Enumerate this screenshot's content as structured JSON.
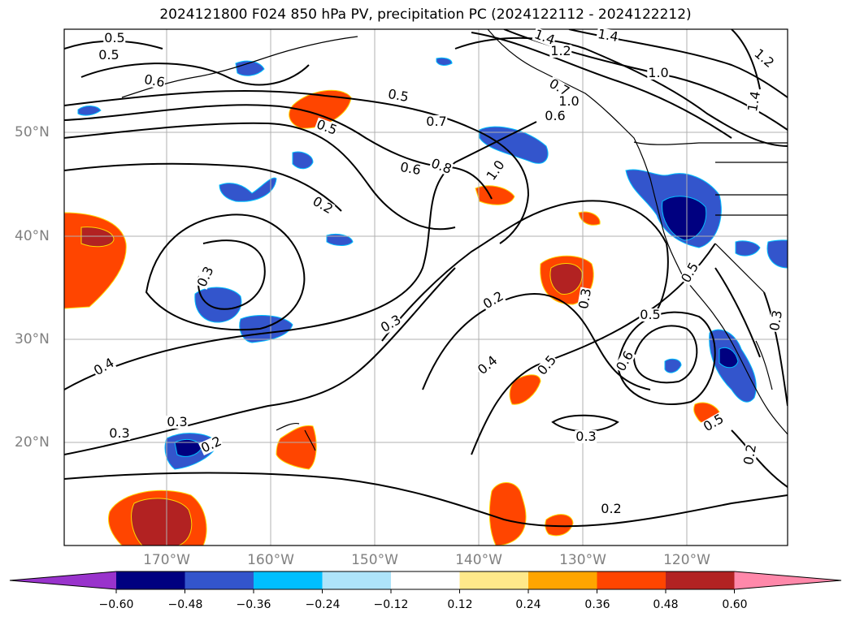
{
  "title": "2024121800 F024 850 hPa PV, precipitation PC (2024122112 - 2024122212)",
  "lon_labels": [
    "170°W",
    "160°W",
    "150°W",
    "140°W",
    "130°W",
    "120°W"
  ],
  "lat_labels": [
    "50°N",
    "40°N",
    "30°N",
    "20°N"
  ],
  "colorbar": {
    "ticks": [
      "−0.60",
      "−0.48",
      "−0.36",
      "−0.24",
      "−0.12",
      "0.12",
      "0.24",
      "0.36",
      "0.48",
      "0.60"
    ],
    "colors": [
      "#9933cc",
      "#000080",
      "#3355cc",
      "#00bfff",
      "#aee4fa",
      "#ffffff",
      "#ffe98a",
      "#ffa500",
      "#ff4500",
      "#b22222",
      "#ff88aa"
    ]
  },
  "contour_labels": [
    "0.5",
    "0.5",
    "0.6",
    "1.4",
    "1.2",
    "1.4",
    "1.2",
    "1.0",
    "0.7",
    "1.0",
    "0.5",
    "0.6",
    "0.5",
    "0.7",
    "1.4",
    "0.6",
    "0.8",
    "1.0",
    "0.2",
    "0.3",
    "0.3",
    "0.4",
    "0.3",
    "0.2",
    "0.4",
    "0.5",
    "0.5",
    "0.6",
    "0.5",
    "0.3",
    "0.3",
    "0.3",
    "0.2",
    "0.5",
    "0.2",
    "0.2",
    "0.3"
  ],
  "colors": {
    "land": "#000000",
    "grid": "#b0b0b0"
  }
}
